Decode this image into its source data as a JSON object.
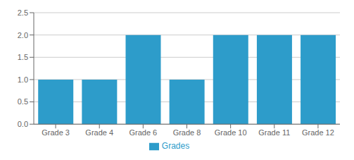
{
  "chart_data": {
    "type": "bar",
    "categories": [
      "Grade 3",
      "Grade 4",
      "Grade 6",
      "Grade 8",
      "Grade 10",
      "Grade 11",
      "Grade 12"
    ],
    "series": [
      {
        "name": "Grades",
        "color": "#2d9cca",
        "values": [
          1,
          1,
          2,
          1,
          2,
          2,
          2
        ]
      }
    ],
    "ylim": [
      0,
      2.5
    ],
    "yticks": [
      {
        "value": 0,
        "label": "0.0"
      },
      0.5,
      {
        "value": 1,
        "label": "1.0"
      },
      1.5,
      {
        "value": 2,
        "label": "2.0"
      },
      2.5
    ],
    "grid": true,
    "legend": "bottom"
  }
}
